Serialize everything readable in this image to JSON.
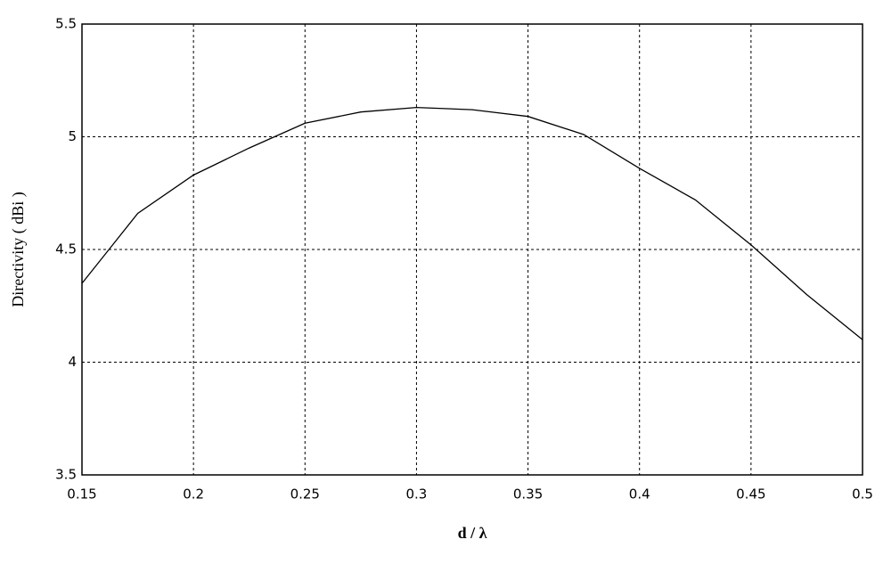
{
  "chart_data": {
    "type": "line",
    "xlabel": "d / λ",
    "ylabel": "Directivity ( dBi )",
    "x": [
      0.15,
      0.175,
      0.2,
      0.225,
      0.25,
      0.275,
      0.3,
      0.325,
      0.35,
      0.375,
      0.4,
      0.425,
      0.45,
      0.475,
      0.5
    ],
    "series": [
      {
        "color": "#000000",
        "values": [
          4.35,
          4.66,
          4.83,
          4.95,
          5.06,
          5.11,
          5.13,
          5.12,
          5.09,
          5.01,
          4.86,
          4.72,
          4.52,
          4.3,
          4.1
        ]
      }
    ],
    "xlim": [
      0.15,
      0.5
    ],
    "xticks": [
      0.15,
      0.2,
      0.25,
      0.3,
      0.35,
      0.4,
      0.45,
      0.5
    ],
    "ylim": [
      3.5,
      5.5
    ],
    "yticks": [
      3.5,
      4,
      4.5,
      5,
      5.5
    ],
    "grid": true
  }
}
